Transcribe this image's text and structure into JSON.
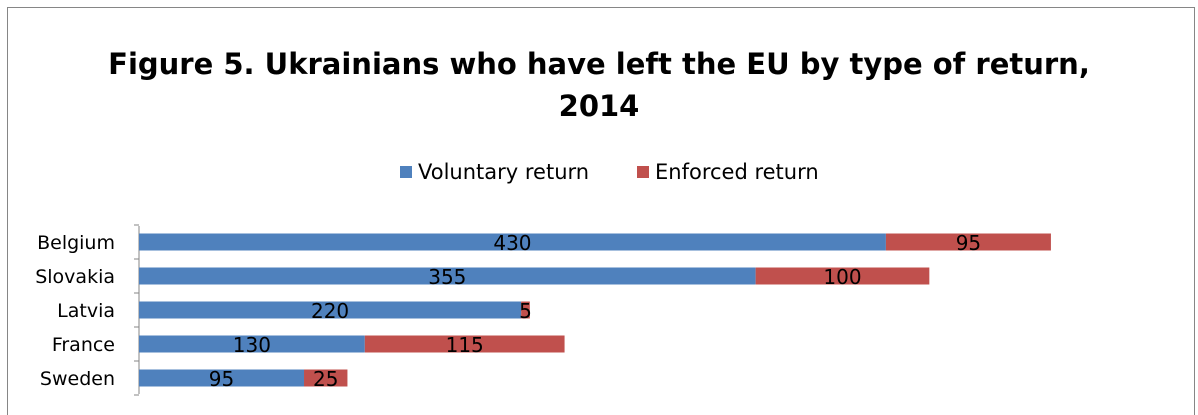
{
  "chart_data": {
    "type": "bar",
    "orientation": "horizontal",
    "stacked": true,
    "title": "Figure 5. Ukrainians who have left the EU by type of return, 2014",
    "title_lines": [
      "Figure 5. Ukrainians who have left the EU by type of return,",
      "2014"
    ],
    "categories": [
      "Belgium",
      "Slovakia",
      "Latvia",
      "France",
      "Sweden"
    ],
    "series": [
      {
        "name": "Voluntary return",
        "values": [
          430,
          355,
          220,
          130,
          95
        ],
        "color": "#4F81BD"
      },
      {
        "name": "Enforced return",
        "values": [
          95,
          100,
          5,
          115,
          25
        ],
        "color": "#C0504D"
      }
    ],
    "legend_position": "top",
    "grid": false,
    "xlim": [
      0,
      600
    ]
  }
}
